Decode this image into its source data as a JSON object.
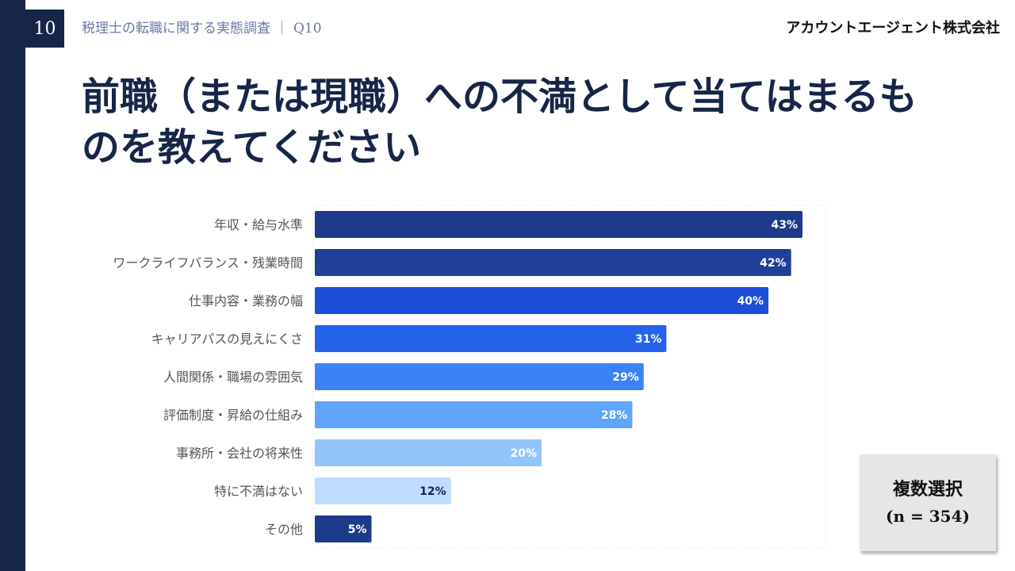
{
  "header": {
    "page_number": "10",
    "subtitle": "税理士の転職に関する実態調査",
    "separator": "｜",
    "question": "Q10",
    "company": "アカウントエージェント株式会社"
  },
  "title": "前職（または現職）への不満として当てはまるものを教えてください",
  "note": {
    "line1": "複数選択",
    "line2": "(n = 354)"
  },
  "colors": {
    "navy": "#172548",
    "shades": [
      "#1e3a8a",
      "#1f3f99",
      "#1d4ed8",
      "#2563eb",
      "#3b82f6",
      "#60a5fa",
      "#93c5fd",
      "#bfdbfe",
      "#1e3a8a"
    ]
  },
  "chart_data": {
    "type": "bar",
    "orientation": "horizontal",
    "categories": [
      "年収・給与水準",
      "ワークライフバランス・残業時間",
      "仕事内容・業務の幅",
      "キャリアパスの見えにくさ",
      "人間関係・職場の雰囲気",
      "評価制度・昇給の仕組み",
      "事務所・会社の将来性",
      "特に不満はない",
      "その他"
    ],
    "values": [
      43,
      42,
      40,
      31,
      29,
      28,
      20,
      12,
      5
    ],
    "value_labels": [
      "43%",
      "42%",
      "40%",
      "31%",
      "29%",
      "28%",
      "20%",
      "12%",
      "5%"
    ],
    "xlim": [
      0,
      45
    ],
    "grid": false
  }
}
